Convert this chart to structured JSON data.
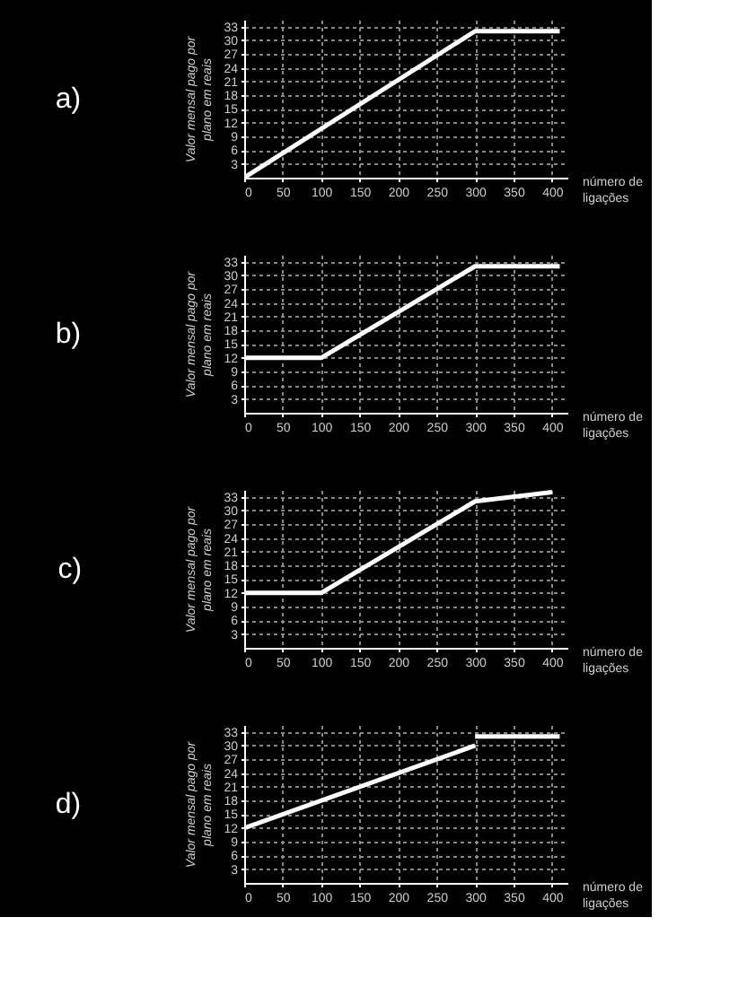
{
  "chart_data": [
    {
      "type": "line",
      "title": "a)",
      "xlabel": "número de ligações",
      "ylabel": "Valor mensal pago por plano em reais",
      "xlim": [
        0,
        420
      ],
      "ylim": [
        0,
        34.5
      ],
      "xticks": [
        0,
        50,
        100,
        150,
        200,
        250,
        300,
        350,
        400
      ],
      "yticks": [
        3,
        6,
        9,
        12,
        15,
        18,
        21,
        24,
        27,
        30,
        33
      ],
      "grid": true,
      "marker": "none",
      "line_style": "solid",
      "series": [
        {
          "color": "#ffffff",
          "x": [
            0,
            300,
            410
          ],
          "values": [
            0,
            32,
            32
          ]
        }
      ]
    },
    {
      "type": "line",
      "title": "b)",
      "xlabel": "número de ligações",
      "ylabel": "Valor mensal pago por plano em reais",
      "xlim": [
        0,
        420
      ],
      "ylim": [
        0,
        34.5
      ],
      "xticks": [
        0,
        50,
        100,
        150,
        200,
        250,
        300,
        350,
        400
      ],
      "yticks": [
        3,
        6,
        9,
        12,
        15,
        18,
        21,
        24,
        27,
        30,
        33
      ],
      "grid": true,
      "marker": "none",
      "line_style": "solid",
      "series": [
        {
          "color": "#ffffff",
          "x": [
            0,
            100,
            300,
            410
          ],
          "values": [
            12,
            12,
            32,
            32
          ]
        }
      ]
    },
    {
      "type": "line",
      "title": "c)",
      "xlabel": "número de ligações",
      "ylabel": "Valor mensal pago por plano em reais",
      "xlim": [
        0,
        420
      ],
      "ylim": [
        0,
        34.5
      ],
      "xticks": [
        0,
        50,
        100,
        150,
        200,
        250,
        300,
        350,
        400
      ],
      "yticks": [
        3,
        6,
        9,
        12,
        15,
        18,
        21,
        24,
        27,
        30,
        33
      ],
      "grid": true,
      "marker": "none",
      "line_style": "solid",
      "series": [
        {
          "color": "#ffffff",
          "x": [
            0,
            100,
            300,
            400
          ],
          "values": [
            12,
            12,
            32,
            34
          ]
        }
      ]
    },
    {
      "type": "line",
      "title": "d)",
      "xlabel": "número de ligações",
      "ylabel": "Valor mensal pago por plano em reais",
      "xlim": [
        0,
        420
      ],
      "ylim": [
        0,
        34.5
      ],
      "xticks": [
        0,
        50,
        100,
        150,
        200,
        250,
        300,
        350,
        400
      ],
      "yticks": [
        3,
        6,
        9,
        12,
        15,
        18,
        21,
        24,
        27,
        30,
        33
      ],
      "grid": true,
      "marker": "none",
      "line_style": "solid",
      "series": [
        {
          "color": "#ffffff",
          "x": [
            0,
            300
          ],
          "values": [
            12,
            30
          ]
        },
        {
          "color": "#ffffff",
          "x": [
            300,
            410
          ],
          "values": [
            32,
            32
          ]
        }
      ]
    }
  ]
}
